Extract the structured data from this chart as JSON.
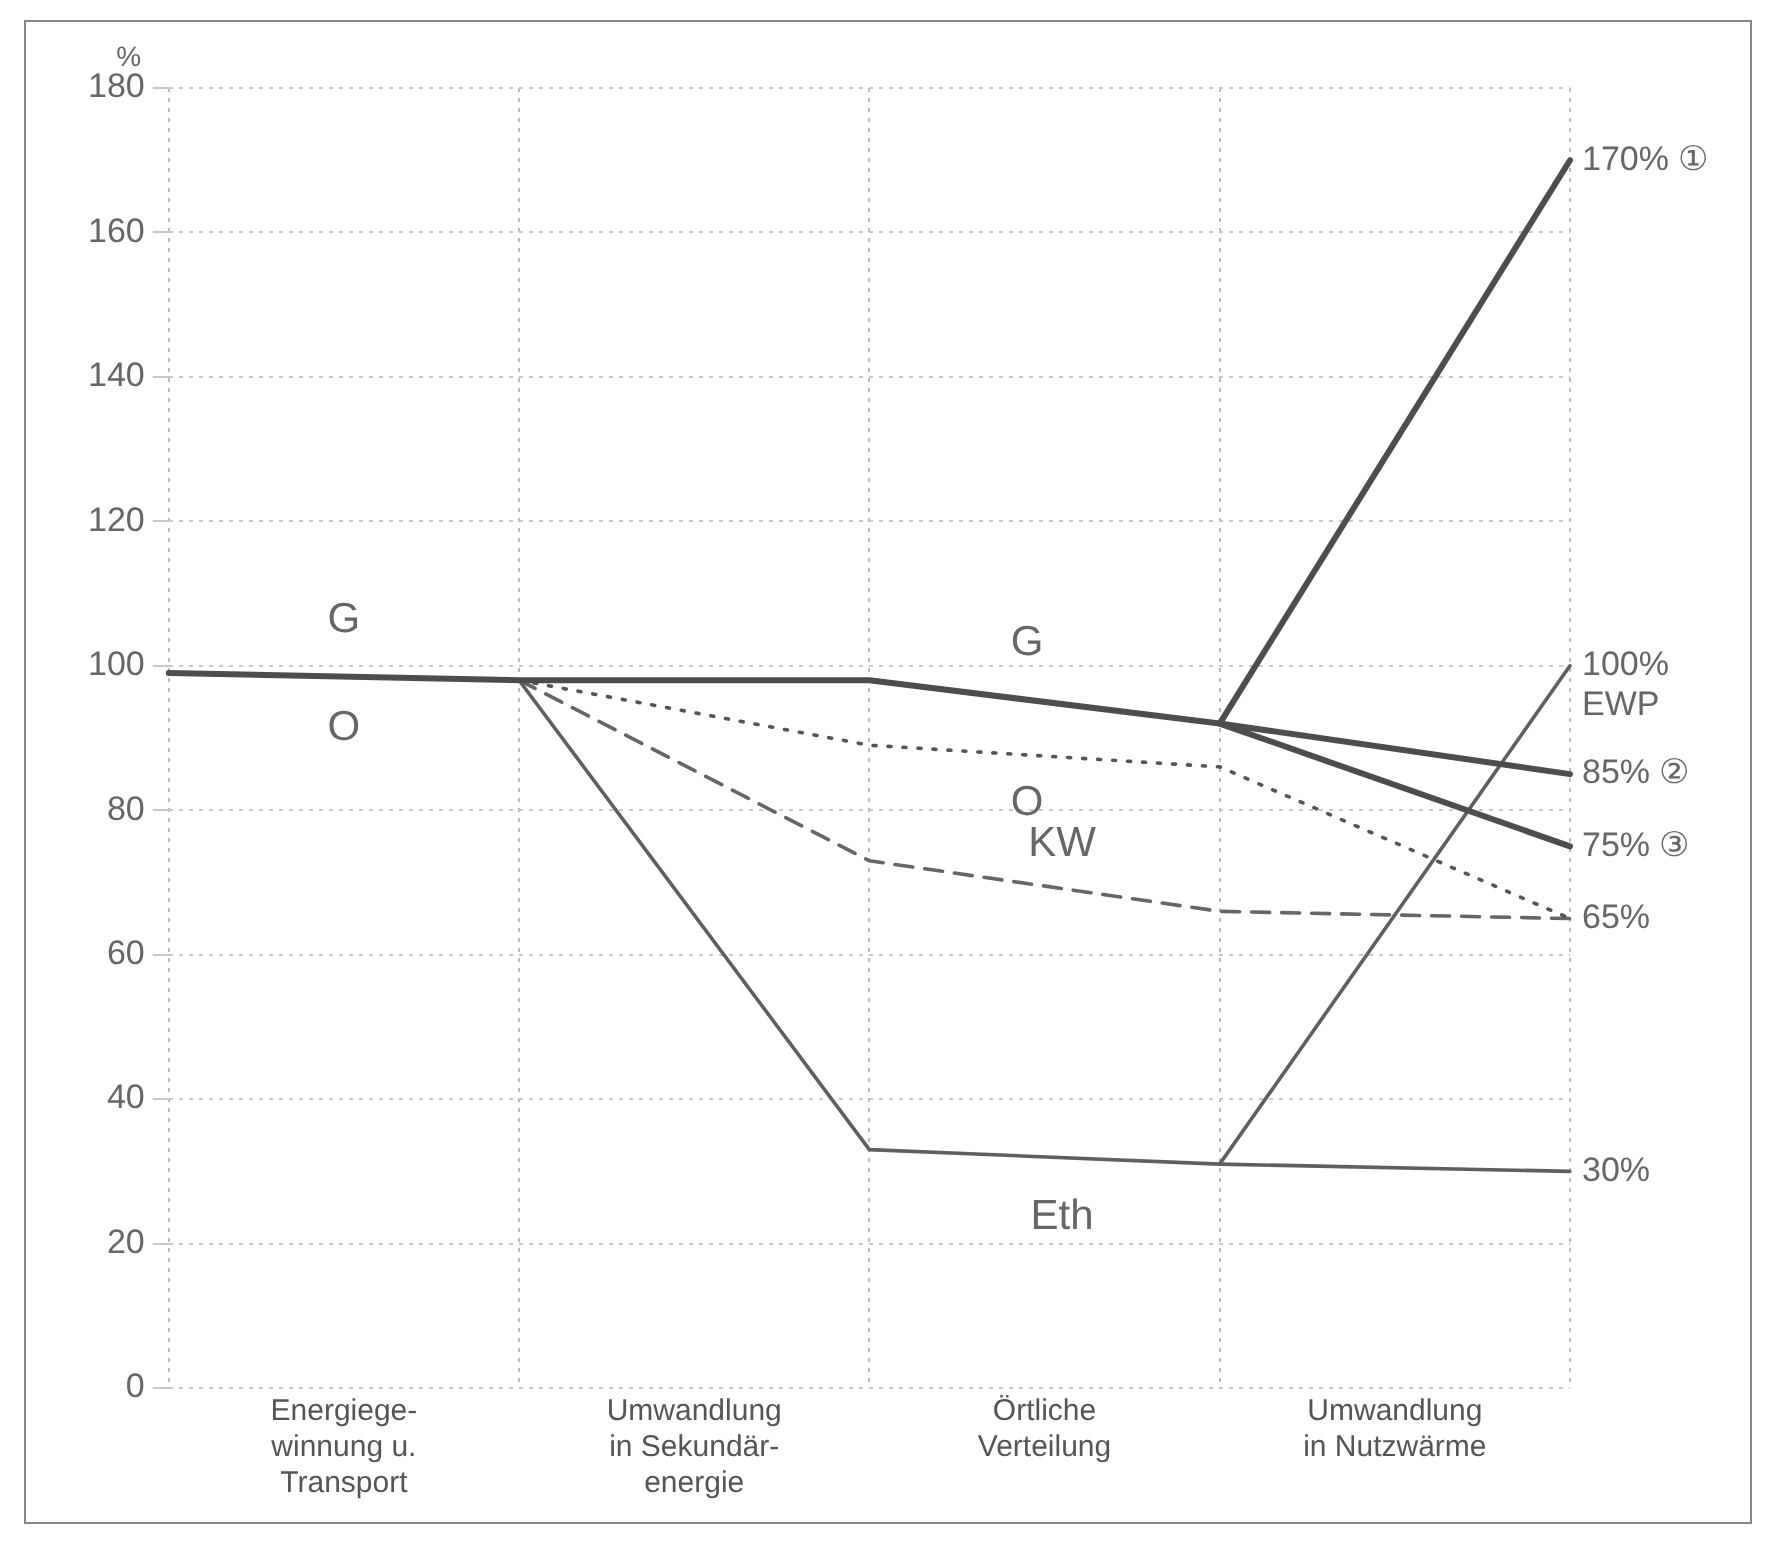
{
  "chart_data": {
    "type": "line",
    "ylabel": "%",
    "categories": [
      null,
      "Energiege-\nwinnung u.\nTransport",
      null,
      "Umwandlung\nin Sekundär-\nenergie",
      null,
      "Örtliche\nVerteilung",
      null,
      "Umwandlung\nin Nutzwärme",
      null
    ],
    "ylim": [
      0,
      180
    ],
    "yticks": [
      0,
      20,
      40,
      60,
      80,
      100,
      120,
      140,
      160,
      180
    ],
    "grid": true,
    "legend": false,
    "marker": "none",
    "series": [
      {
        "name": "G",
        "color": "#4d4d4d",
        "line_style": "solid",
        "values": [
          99,
          null,
          98,
          null,
          98,
          null,
          92,
          null,
          170
        ],
        "value_labels": [
          null,
          null,
          null,
          null,
          null,
          null,
          null,
          null,
          "170% ①"
        ]
      },
      {
        "color": "#4d4d4d",
        "line_style": "solid",
        "values": [
          null,
          null,
          null,
          null,
          null,
          null,
          92,
          null,
          85
        ],
        "value_labels": [
          null,
          null,
          null,
          null,
          null,
          null,
          null,
          null,
          "85% ②"
        ]
      },
      {
        "color": "#4d4d4d",
        "line_style": "solid",
        "values": [
          null,
          null,
          null,
          null,
          null,
          null,
          92,
          null,
          75
        ],
        "value_labels": [
          null,
          null,
          null,
          null,
          null,
          null,
          null,
          null,
          "75% ③"
        ]
      },
      {
        "name": "O",
        "color": "#555555",
        "line_style": "dotted",
        "values": [
          null,
          null,
          98,
          null,
          89,
          null,
          86,
          null,
          65
        ],
        "value_labels": [
          null,
          null,
          null,
          null,
          null,
          null,
          null,
          null,
          "65%"
        ]
      },
      {
        "name": "KW",
        "color": "#666666",
        "line_style": "dashed",
        "values": [
          null,
          null,
          98,
          null,
          73,
          null,
          66,
          null,
          65
        ]
      },
      {
        "name": "Eth",
        "color": "#5f5f5f",
        "line_style": "solid",
        "values": [
          null,
          null,
          98,
          null,
          33,
          null,
          31,
          null,
          30
        ],
        "value_labels": [
          null,
          null,
          null,
          null,
          null,
          null,
          null,
          null,
          "30%"
        ]
      },
      {
        "name": "EWP",
        "color": "#5f5f5f",
        "line_style": "solid",
        "values": [
          null,
          null,
          null,
          null,
          null,
          null,
          31,
          null,
          100
        ],
        "value_labels": [
          null,
          null,
          null,
          null,
          null,
          null,
          null,
          null,
          "100%"
        ]
      }
    ]
  }
}
